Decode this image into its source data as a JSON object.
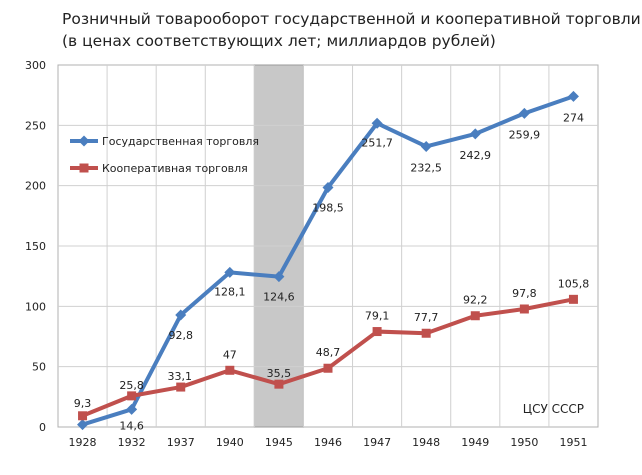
{
  "chart_data": {
    "type": "line",
    "title": "Розничный товарооборот государственной и кооперативной торговли",
    "subtitle": "(в ценах соответствующих лет; миллиардов рублей)",
    "categories": [
      "1928",
      "1932",
      "1937",
      "1940",
      "1945",
      "1946",
      "1947",
      "1948",
      "1949",
      "1950",
      "1951"
    ],
    "ylim": [
      0,
      300
    ],
    "yticks": [
      0,
      50,
      100,
      150,
      200,
      250,
      300
    ],
    "grid": true,
    "legend_position": "top-left",
    "highlight_category": "1945",
    "source": "ЦСУ СССР",
    "series": [
      {
        "name": "Государственная торговля",
        "color": "#4a7ebf",
        "marker": "diamond",
        "values": [
          2,
          14.6,
          92.8,
          128.1,
          124.6,
          198.5,
          251.7,
          232.5,
          242.9,
          259.9,
          274
        ],
        "labels": [
          "",
          "14,6",
          "92,8",
          "128,1",
          "124,6",
          "198,5",
          "251,7",
          "232,5",
          "242,9",
          "259,9",
          "274"
        ]
      },
      {
        "name": "Кооперативная торговля",
        "color": "#c0504d",
        "marker": "square",
        "values": [
          9.3,
          25.8,
          33.1,
          47,
          35.5,
          48.7,
          79.1,
          77.7,
          92.2,
          97.8,
          105.8
        ],
        "labels": [
          "9,3",
          "25,8",
          "33,1",
          "47",
          "35,5",
          "48,7",
          "79,1",
          "77,7",
          "92,2",
          "97,8",
          "105,8"
        ]
      }
    ]
  }
}
